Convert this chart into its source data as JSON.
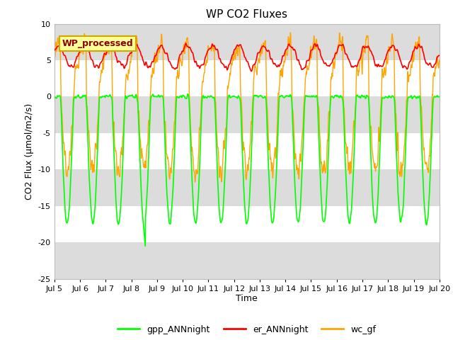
{
  "title": "WP CO2 Fluxes",
  "xlabel": "Time",
  "ylabel": "CO2 Flux (μmol/m2/s)",
  "ylim": [
    -25,
    10
  ],
  "yticks": [
    -25,
    -20,
    -15,
    -10,
    -5,
    0,
    5,
    10
  ],
  "xlim_days": [
    5.0,
    20.0
  ],
  "xtick_days": [
    5,
    6,
    7,
    8,
    9,
    10,
    11,
    12,
    13,
    14,
    15,
    16,
    17,
    18,
    19,
    20
  ],
  "xtick_labels": [
    "Jul 5",
    "Jul 6",
    "Jul 7",
    "Jul 8",
    "Jul 9",
    "Jul 10",
    "Jul 11",
    "Jul 12",
    "Jul 13",
    "Jul 14",
    "Jul 15",
    "Jul 16",
    "Jul 17",
    "Jul 18",
    "Jul 19",
    "Jul 20"
  ],
  "color_gpp": "#00FF00",
  "color_er": "#FF0000",
  "color_wc": "#FFA500",
  "annotation_text": "WP_processed",
  "annotation_facecolor": "#FFFF99",
  "annotation_edgecolor": "#CCAA00",
  "annotation_textcolor": "#880000",
  "legend_labels": [
    "gpp_ANNnight",
    "er_ANNnight",
    "wc_gf"
  ],
  "plot_bg_color": "#FFFFFF",
  "fig_bg_color": "#FFFFFF",
  "gray_band_color": "#DCDCDC",
  "n_points_per_day": 96,
  "gpp_night_val": 0.0,
  "gpp_day_min": -17.0,
  "er_base": 5.5,
  "er_amp": 1.5,
  "wc_day_min": -10.0,
  "wc_day_max": 7.5
}
